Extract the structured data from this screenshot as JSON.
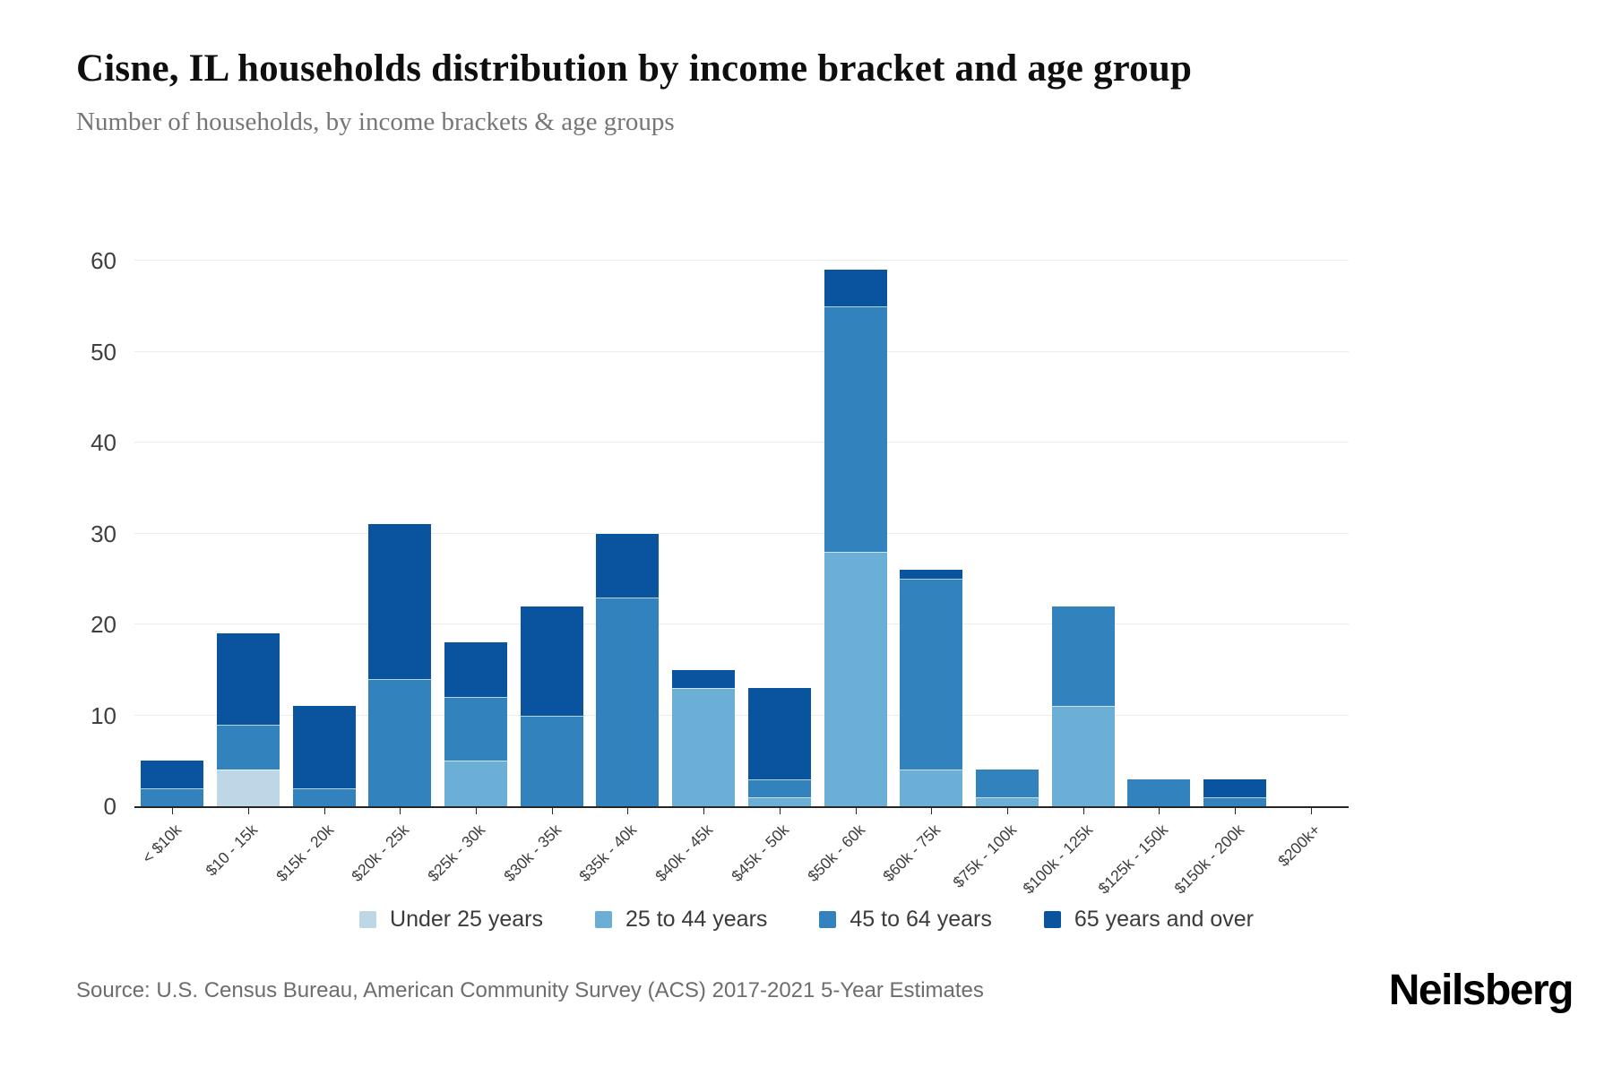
{
  "chart_data": {
    "type": "bar",
    "stacked": true,
    "title": "Cisne, IL households distribution by income bracket and age group",
    "subtitle": "Number of households, by income brackets & age groups",
    "categories": [
      "< $10k",
      "$10 - 15k",
      "$15k - 20k",
      "$20k - 25k",
      "$25k - 30k",
      "$30k - 35k",
      "$35k - 40k",
      "$40k - 45k",
      "$45k - 50k",
      "$50k - 60k",
      "$60k - 75k",
      "$75k - 100k",
      "$100k - 125k",
      "$125k - 150k",
      "$150k - 200k",
      "$200k+"
    ],
    "series": [
      {
        "name": "Under 25 years",
        "color": "#bdd7e7",
        "values": [
          0,
          4,
          0,
          0,
          0,
          0,
          0,
          0,
          0,
          0,
          0,
          0,
          0,
          0,
          0,
          0
        ]
      },
      {
        "name": "25 to 44 years",
        "color": "#6baed6",
        "values": [
          0,
          0,
          0,
          0,
          5,
          0,
          0,
          13,
          1,
          28,
          4,
          1,
          11,
          0,
          0,
          0
        ]
      },
      {
        "name": "45 to 64 years",
        "color": "#3182bd",
        "values": [
          2,
          5,
          2,
          14,
          7,
          10,
          23,
          0,
          2,
          27,
          21,
          3,
          11,
          3,
          1,
          0
        ]
      },
      {
        "name": "65 years and over",
        "color": "#0a539e",
        "values": [
          3,
          10,
          9,
          17,
          6,
          12,
          7,
          2,
          10,
          4,
          1,
          0,
          0,
          0,
          2,
          0
        ]
      }
    ],
    "totals": [
      5,
      19,
      11,
      31,
      18,
      22,
      30,
      15,
      13,
      59,
      26,
      4,
      22,
      3,
      3,
      0
    ],
    "ylim": [
      0,
      60
    ],
    "yticks": [
      0,
      10,
      20,
      30,
      40,
      50,
      60
    ],
    "grid": true,
    "legend_position": "bottom"
  },
  "footer": {
    "source": "Source: U.S. Census Bureau, American Community Survey (ACS) 2017-2021 5-Year Estimates",
    "logo": "Neilsberg"
  }
}
